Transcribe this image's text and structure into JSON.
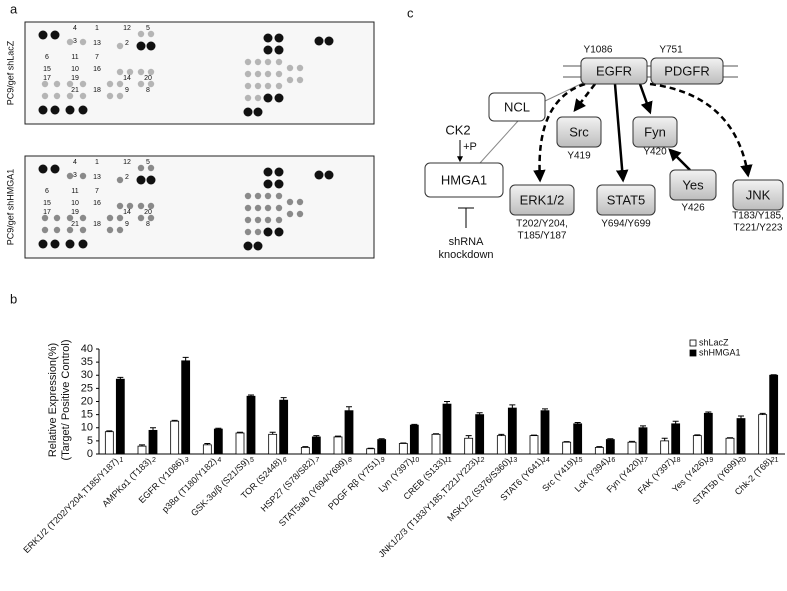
{
  "panel_labels": {
    "a": "a",
    "b": "b",
    "c": "c"
  },
  "blots": [
    {
      "label": "PC9/gef shLacZ",
      "spot_numbers": [
        "4",
        "1",
        "12",
        "5",
        "3",
        "13",
        "2",
        "6",
        "11",
        "7",
        "15",
        "10",
        "16",
        "17",
        "19",
        "14",
        "20",
        "21",
        "18",
        "9",
        "8"
      ]
    },
    {
      "label": "PC9/gef shHMGA1",
      "spot_numbers": [
        "4",
        "1",
        "12",
        "5",
        "3",
        "13",
        "2",
        "6",
        "11",
        "7",
        "15",
        "10",
        "16",
        "17",
        "19",
        "14",
        "20",
        "21",
        "18",
        "9",
        "8"
      ]
    }
  ],
  "diagram": {
    "receptors": [
      "EGFR",
      "PDGFR"
    ],
    "receptor_sites": [
      "Y1086",
      "Y751"
    ],
    "ncl": "NCL",
    "hmga1": "HMGA1",
    "ck2": "CK2",
    "phospho": "+P",
    "knockdown": [
      "shRNA",
      "knockdown"
    ],
    "nodes": [
      {
        "label": "Src",
        "sites": [
          "Y419"
        ]
      },
      {
        "label": "Fyn",
        "sites": [
          "Y420"
        ]
      },
      {
        "label": "ERK1/2",
        "sites": [
          "T202/Y204,",
          "T185/Y187"
        ]
      },
      {
        "label": "STAT5",
        "sites": [
          "Y694/Y699"
        ]
      },
      {
        "label": "Yes",
        "sites": [
          "Y426"
        ]
      },
      {
        "label": "JNK",
        "sites": [
          "T183/Y185,",
          "T221/Y223"
        ]
      }
    ]
  },
  "chart_data": {
    "type": "bar",
    "y_label": [
      "Relative Expression(%)",
      "(Target/ Positive Control)"
    ],
    "categories": [
      "ERK1/2 (T202/Y204,T185/Y187)",
      "AMPKα1 (T183)",
      "EGFR (Y1086)",
      "p38α (T180/Y182)",
      "GSK-3α/β (S21/S9)",
      "TOR (S2448)",
      "HSP27 (S78/S82)",
      "STAT5a/b (Y694/Y699)",
      "PDGF Rβ (Y751)",
      "Lyn (Y397)",
      "CREB (S133)",
      "JNK1/2/3 (T183/Y185,T221/Y223)",
      "MSK1/2 (S376/S360)",
      "STAT6 (Y641)",
      "Src (Y419)",
      "Lck (Y394)",
      "Fyn (Y420)",
      "FAK (Y397)",
      "Yes (Y426)",
      "STAT5b (Y699)",
      "Chk-2 (T68)"
    ],
    "category_numbers": [
      1,
      2,
      3,
      4,
      5,
      6,
      7,
      8,
      9,
      10,
      11,
      12,
      13,
      14,
      15,
      16,
      17,
      18,
      19,
      20,
      21
    ],
    "series": [
      {
        "name": "shLacZ",
        "color": "#ffffff",
        "values": [
          8.5,
          3,
          12.5,
          3.5,
          8,
          7.5,
          2.5,
          6.5,
          2,
          4,
          7.5,
          6,
          7,
          7,
          4.5,
          2.5,
          4.5,
          5,
          7,
          6,
          15
        ],
        "errors": [
          0.3,
          0.5,
          0.3,
          0.5,
          0.3,
          0.8,
          0.3,
          0.3,
          0.2,
          0.2,
          0.2,
          1,
          0.5,
          0.2,
          0.2,
          0.3,
          0.3,
          1,
          0.3,
          0.2,
          0.5
        ]
      },
      {
        "name": "shHMGA1",
        "color": "#000000",
        "values": [
          28.5,
          9,
          35.5,
          9.5,
          22,
          20.5,
          6.5,
          16.5,
          5.5,
          11,
          19,
          15,
          17.5,
          16.5,
          11.5,
          5.5,
          10,
          11.5,
          15.5,
          13.5,
          30
        ],
        "errors": [
          0.7,
          1,
          1.3,
          0.3,
          0.5,
          1,
          0.5,
          1.5,
          0.3,
          0.3,
          1,
          0.7,
          1.2,
          0.7,
          0.5,
          0.3,
          0.7,
          1,
          0.5,
          1,
          0.2
        ]
      }
    ],
    "ylim": [
      0,
      40
    ],
    "yticks": [
      0,
      5,
      10,
      15,
      20,
      25,
      30,
      35,
      40
    ],
    "grid": false
  }
}
